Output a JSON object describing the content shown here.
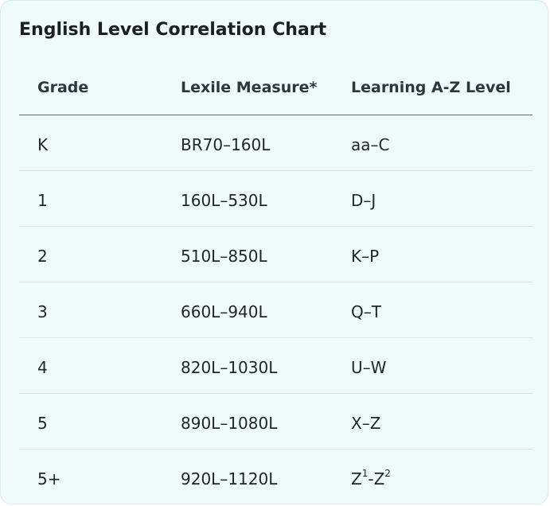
{
  "card": {
    "title": "English Level Correlation Chart"
  },
  "table": {
    "headers": [
      "Grade",
      "Lexile Measure*",
      "Learning A-Z Level"
    ],
    "rows": [
      {
        "grade": "K",
        "lexile": "BR70–160L",
        "level": "aa–C"
      },
      {
        "grade": "1",
        "lexile": "160L–530L",
        "level": "D–J"
      },
      {
        "grade": "2",
        "lexile": "510L–850L",
        "level": "K–P"
      },
      {
        "grade": "3",
        "lexile": "660L–940L",
        "level": "Q–T"
      },
      {
        "grade": "4",
        "lexile": "820L–1030L",
        "level": "U–W"
      },
      {
        "grade": "5",
        "lexile": "890L–1080L",
        "level": "X–Z"
      },
      {
        "grade": "5+",
        "lexile": "920L–1120L",
        "level": "Z1-Z2",
        "level_parts": {
          "a": "Z",
          "a_sup": "1",
          "sep": "-",
          "b": "Z",
          "b_sup": "2"
        }
      }
    ]
  }
}
